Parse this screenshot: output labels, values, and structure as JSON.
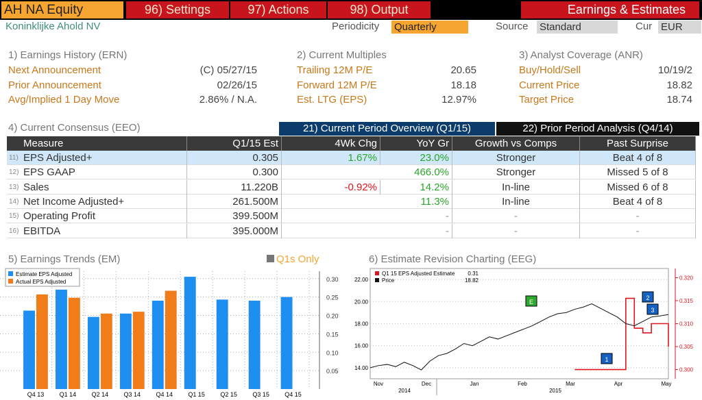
{
  "header": {
    "ticker": "AH NA Equity",
    "menu": [
      "96) Settings",
      "97) Actions",
      "98) Output"
    ],
    "function_title": "Earnings & Estimates",
    "company": "Koninklijke Ahold NV",
    "periodicity_label": "Periodicity",
    "periodicity": "Quarterly",
    "source_label": "Source",
    "source": "Standard",
    "currency_label": "Cur",
    "currency": "EUR"
  },
  "summary": [
    {
      "title": "1) Earnings History (ERN)",
      "rows": [
        [
          "Next Announcement",
          "(C)  05/27/15"
        ],
        [
          "Prior Announcement",
          "02/26/15"
        ],
        [
          "Avg/Implied 1 Day Move",
          "2.86% / N.A."
        ]
      ]
    },
    {
      "title": "2) Current Multiples",
      "rows": [
        [
          "Trailing 12M P/E",
          "20.65"
        ],
        [
          "Forward 12M P/E",
          "18.18"
        ],
        [
          "Est. LTG (EPS)",
          "12.97%"
        ]
      ]
    },
    {
      "title": "3) Analyst Coverage (ANR)",
      "rows": [
        [
          "Buy/Hold/Sell",
          "10/19/2"
        ],
        [
          "Current Price",
          "18.82"
        ],
        [
          "Target Price",
          "18.74"
        ]
      ]
    }
  ],
  "consensus": {
    "title": "4) Current Consensus (EEO)",
    "tabs": [
      "21) Current Period Overview (Q1/15)",
      "22) Prior Period Analysis (Q4/14)"
    ],
    "columns": [
      "Measure",
      "Q1/15 Est",
      "4Wk Chg",
      "YoY Gr",
      "Growth vs Comps",
      "Past Surprise"
    ],
    "rows": [
      {
        "id": "11)",
        "cells": [
          "EPS Adjusted+",
          "0.305",
          "1.67%",
          "23.0%",
          "Stronger",
          "Beat 4 of 8"
        ]
      },
      {
        "id": "12)",
        "cells": [
          "EPS GAAP",
          "0.300",
          null,
          "466.0%",
          "Stronger",
          "Missed 5 of 8"
        ]
      },
      {
        "id": "13)",
        "cells": [
          "Sales",
          "11.220B",
          "-0.92%",
          "14.2%",
          "In-line",
          "Missed 6 of 8"
        ]
      },
      {
        "id": "14)",
        "cells": [
          "Net Income Adjusted+",
          "261.500M",
          null,
          "11.3%",
          "In-line",
          "Beat 4 of 8"
        ]
      },
      {
        "id": "15)",
        "cells": [
          "Operating Profit",
          "399.500M",
          null,
          "-",
          "-",
          "-"
        ]
      },
      {
        "id": "16)",
        "cells": [
          "EBITDA",
          "395.000M",
          null,
          "-",
          "-",
          "-"
        ]
      }
    ]
  },
  "chart_data": [
    {
      "type": "bar",
      "title": "5) Earnings Trends (EM)",
      "option": "Q1s Only",
      "categories": [
        "Q4 13",
        "Q1 14",
        "Q2 14",
        "Q3 14",
        "Q4 14",
        "Q1 15",
        "Q2 15",
        "Q3 15",
        "Q4 15"
      ],
      "series": [
        {
          "name": "Estimate EPS Adjusted",
          "color": "#1e8ff0",
          "values": [
            0.213,
            0.27,
            0.196,
            0.205,
            0.24,
            0.305,
            0.243,
            0.24,
            0.25
          ]
        },
        {
          "name": "Actual EPS Adjusted",
          "color": "#f07d1a",
          "values": [
            0.257,
            0.248,
            0.205,
            0.21,
            0.267,
            null,
            null,
            null,
            null
          ]
        }
      ],
      "ylim": [
        0,
        0.32
      ],
      "yticks": [
        0.05,
        {
          "value": 0.1,
          "label": "0.10"
        },
        0.15,
        {
          "value": 0.2,
          "label": "0.20"
        },
        0.25,
        {
          "value": 0.3,
          "label": "0.30"
        }
      ],
      "grid": true
    },
    {
      "type": "line",
      "title": "6) Estimate Revision Charting (EEG)",
      "months": [
        "Nov",
        "Dec",
        "Jan",
        "Feb",
        "Mar",
        "Apr",
        "May"
      ],
      "years": [
        "2014",
        "2015"
      ],
      "series": [
        {
          "name": "Q1 15 EPS Adjusted Estimate",
          "color": "#e0141c",
          "axis": "y2",
          "last_value": 0.31,
          "values": [
            null,
            null,
            null,
            null,
            null,
            null,
            null,
            null,
            null,
            null,
            null,
            null,
            null,
            null,
            null,
            null,
            null,
            null,
            null,
            null,
            null,
            null,
            null,
            null,
            0.3,
            0.3,
            0.3,
            0.3,
            0.3,
            0.3,
            0.3155,
            0.309,
            0.308,
            0.31,
            0.31,
            0.305
          ]
        },
        {
          "name": "Price",
          "color": "#111111",
          "last_value": 18.82,
          "values": [
            14.0,
            14.2,
            14.3,
            14.1,
            14.5,
            14.2,
            13.8,
            14.6,
            15.1,
            15.3,
            15.7,
            16.2,
            16.0,
            16.4,
            16.8,
            16.6,
            16.9,
            17.2,
            17.5,
            17.8,
            18.2,
            18.6,
            18.9,
            19.0,
            19.3,
            19.5,
            19.8,
            19.4,
            19.0,
            18.6,
            18.0,
            17.8,
            18.2,
            18.6,
            18.7,
            18.82
          ]
        }
      ],
      "ylim": [
        13,
        23
      ],
      "yticks": [
        {
          "value": 14,
          "label": "14.00"
        },
        {
          "value": 16,
          "label": "16.00"
        },
        {
          "value": 18,
          "label": "18.00"
        },
        {
          "value": 20,
          "label": "20.00"
        },
        {
          "value": 22,
          "label": "22.00"
        }
      ],
      "y2lim": [
        0.298,
        0.322
      ],
      "y2ticks": [
        {
          "value": 0.3,
          "label": "0.300"
        },
        0.305,
        {
          "value": 0.31,
          "label": "0.310"
        },
        0.315,
        {
          "value": 0.32,
          "label": "0.320"
        }
      ],
      "annotations": [
        "E",
        "1",
        "2",
        "3"
      ],
      "grid": true
    }
  ]
}
